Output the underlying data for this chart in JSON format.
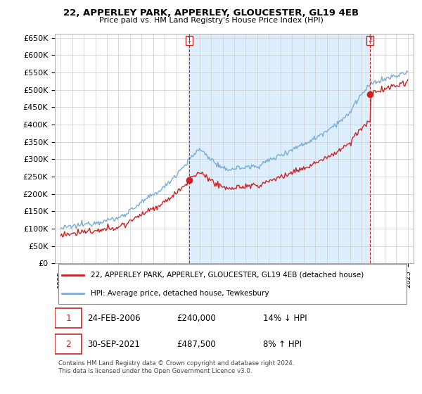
{
  "title": "22, APPERLEY PARK, APPERLEY, GLOUCESTER, GL19 4EB",
  "subtitle": "Price paid vs. HM Land Registry's House Price Index (HPI)",
  "hpi_label": "HPI: Average price, detached house, Tewkesbury",
  "property_label": "22, APPERLEY PARK, APPERLEY, GLOUCESTER, GL19 4EB (detached house)",
  "hpi_color": "#7aadd4",
  "property_color": "#cc2222",
  "shade_color": "#ddeeff",
  "purchase1": {
    "date": "24-FEB-2006",
    "price": 240000,
    "price_str": "£240,000",
    "pct": "14%",
    "dir": "↓"
  },
  "purchase2": {
    "date": "30-SEP-2021",
    "price": 487500,
    "price_str": "£487,500",
    "pct": "8%",
    "dir": "↑"
  },
  "t1": 2006.125,
  "t2": 2021.75,
  "ylim": [
    0,
    662000
  ],
  "yticks": [
    0,
    50000,
    100000,
    150000,
    200000,
    250000,
    300000,
    350000,
    400000,
    450000,
    500000,
    550000,
    600000,
    650000
  ],
  "footer": "Contains HM Land Registry data © Crown copyright and database right 2024.\nThis data is licensed under the Open Government Licence v3.0.",
  "background_color": "#ffffff",
  "plot_bg_color": "#ffffff",
  "grid_color": "#cccccc"
}
